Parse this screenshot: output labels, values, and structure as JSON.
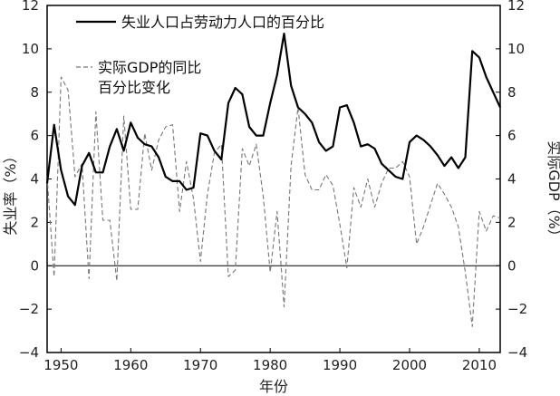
{
  "chart_data": {
    "type": "line",
    "xlabel": "年份",
    "ylabel_left": "失业率（%）",
    "ylabel_right": "实际GDP（%）",
    "xlim": [
      1948,
      2013
    ],
    "ylim": [
      -4,
      12
    ],
    "x_ticks": [
      1950,
      1960,
      1970,
      1980,
      1990,
      2000,
      2010
    ],
    "y_ticks": [
      -4,
      -2,
      0,
      2,
      4,
      6,
      8,
      10,
      12
    ],
    "grid": false,
    "legend_position": "top-left",
    "series": [
      {
        "name": "失业人口占劳动力人口的百分比",
        "style": "solid",
        "color": "#000000",
        "x": [
          1948,
          1949,
          1950,
          1951,
          1952,
          1953,
          1954,
          1955,
          1956,
          1957,
          1958,
          1959,
          1960,
          1961,
          1962,
          1963,
          1964,
          1965,
          1966,
          1967,
          1968,
          1969,
          1970,
          1971,
          1972,
          1973,
          1974,
          1975,
          1976,
          1977,
          1978,
          1979,
          1980,
          1981,
          1982,
          1983,
          1984,
          1985,
          1986,
          1987,
          1988,
          1989,
          1990,
          1991,
          1992,
          1993,
          1994,
          1995,
          1996,
          1997,
          1998,
          1999,
          2000,
          2001,
          2002,
          2003,
          2004,
          2005,
          2006,
          2007,
          2008,
          2009,
          2010,
          2011,
          2012,
          2013
        ],
        "y": [
          3.8,
          6.5,
          4.4,
          3.2,
          2.8,
          4.6,
          5.2,
          4.3,
          4.3,
          5.5,
          6.3,
          5.3,
          6.6,
          5.9,
          5.6,
          5.5,
          5.0,
          4.1,
          3.9,
          3.9,
          3.5,
          3.6,
          6.1,
          6.0,
          5.3,
          4.9,
          7.5,
          8.2,
          7.9,
          6.4,
          6.0,
          6.0,
          7.5,
          8.8,
          10.7,
          8.3,
          7.3,
          7.0,
          6.6,
          5.7,
          5.3,
          5.5,
          7.3,
          7.4,
          6.6,
          5.5,
          5.6,
          5.4,
          4.7,
          4.4,
          4.1,
          4.0,
          5.7,
          6.0,
          5.8,
          5.5,
          5.1,
          4.6,
          5.0,
          4.5,
          5.0,
          9.9,
          9.6,
          8.7,
          8.0,
          7.3
        ]
      },
      {
        "name": "实际GDP的同比百分比变化",
        "style": "dashed",
        "color": "#777777",
        "x": [
          1948,
          1949,
          1950,
          1951,
          1952,
          1953,
          1954,
          1955,
          1956,
          1957,
          1958,
          1959,
          1960,
          1961,
          1962,
          1963,
          1964,
          1965,
          1966,
          1967,
          1968,
          1969,
          1970,
          1971,
          1972,
          1973,
          1974,
          1975,
          1976,
          1977,
          1978,
          1979,
          1980,
          1981,
          1982,
          1983,
          1984,
          1985,
          1986,
          1987,
          1988,
          1989,
          1990,
          1991,
          1992,
          1993,
          1994,
          1995,
          1996,
          1997,
          1998,
          1999,
          2000,
          2001,
          2002,
          2003,
          2004,
          2005,
          2006,
          2007,
          2008,
          2009,
          2010,
          2011,
          2012,
          2013
        ],
        "y": [
          4.1,
          -0.5,
          8.7,
          8.1,
          4.1,
          4.7,
          -0.6,
          7.1,
          2.1,
          2.1,
          -0.7,
          6.9,
          2.6,
          2.6,
          6.1,
          4.4,
          5.8,
          6.4,
          6.5,
          2.5,
          4.8,
          3.1,
          0.2,
          3.3,
          5.2,
          5.6,
          -0.5,
          -0.2,
          5.4,
          4.6,
          5.6,
          3.2,
          -0.3,
          2.5,
          -1.9,
          4.6,
          7.3,
          4.2,
          3.5,
          3.5,
          4.2,
          3.7,
          1.9,
          -0.1,
          3.6,
          2.7,
          4.0,
          2.7,
          3.8,
          4.5,
          4.5,
          4.8,
          4.1,
          1.0,
          1.8,
          2.8,
          3.8,
          3.3,
          2.7,
          1.8,
          -0.3,
          -2.8,
          2.5,
          1.6,
          2.3,
          2.2
        ]
      }
    ]
  }
}
